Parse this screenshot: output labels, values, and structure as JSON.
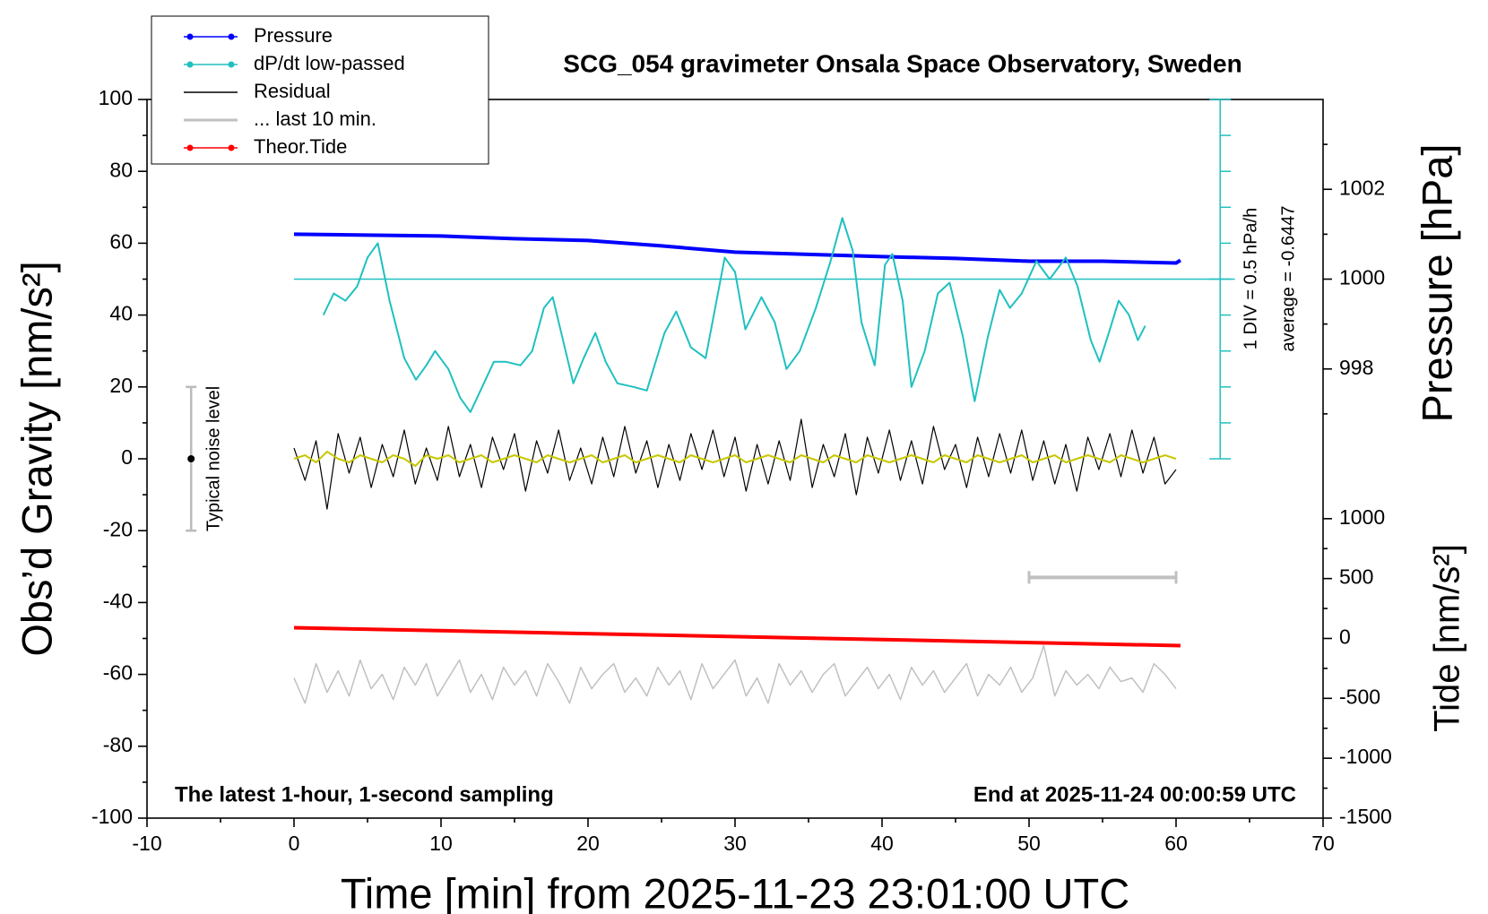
{
  "chart_data": {
    "type": "line",
    "title": "SCG_054 gravimeter Onsala Space Observatory, Sweden",
    "xlabel": "Time [min] from 2025-11-23 23:01:00 UTC",
    "ylabel": "Obs’d Gravity [nm/s²]",
    "y2label": "Pressure [hPa]",
    "y3label": "Tide [nm/s²]",
    "xlim": [
      -10,
      70
    ],
    "xticks": [
      -10,
      0,
      10,
      20,
      30,
      40,
      50,
      60,
      70
    ],
    "xminor": [
      -5,
      5,
      15,
      25,
      35,
      45,
      55,
      65
    ],
    "ylim": [
      -100,
      100
    ],
    "yticks": [
      -100,
      -80,
      -60,
      -40,
      -20,
      0,
      20,
      40,
      60,
      80,
      100
    ],
    "yminor": [
      -90,
      -70,
      -50,
      -30,
      -10,
      10,
      30,
      50,
      70,
      90
    ],
    "y2lim": [
      988,
      1004
    ],
    "y2ticks": [
      998,
      1000,
      1002
    ],
    "y2minor": [
      997,
      999,
      1001,
      1003
    ],
    "y3lim": [
      -1500,
      4500
    ],
    "y3ticks": [
      -1500,
      -1000,
      -500,
      0,
      500,
      1000
    ],
    "y3minor": [
      -1250,
      -750,
      -250,
      250,
      750
    ],
    "annotations": [
      "The latest 1-hour, 1-second sampling",
      "End at 2025-11-24 00:00:59 UTC",
      "1 DIV = 0.5 hPa/h",
      "average = -0.6447"
    ],
    "dpdt_axis": {
      "x": 63,
      "ylim": [
        0,
        100
      ],
      "ticks": [
        0,
        10,
        20,
        30,
        40,
        50,
        60,
        70,
        80,
        90,
        100
      ],
      "ref": 50,
      "ref_x": [
        0,
        64
      ]
    },
    "noise": {
      "x": -7,
      "value": 0,
      "error": 20,
      "label": "Typical noise level"
    },
    "last10_bar": {
      "x": [
        50,
        60
      ],
      "value": -33
    },
    "x": [
      0,
      0.75,
      1.5,
      2.25,
      3,
      3.75,
      4.5,
      5.25,
      6,
      6.75,
      7.5,
      8.25,
      9,
      9.75,
      10.5,
      11.25,
      12,
      12.75,
      13.5,
      14.25,
      15,
      15.75,
      16.5,
      17.25,
      18,
      18.75,
      19.5,
      20.25,
      21,
      21.75,
      22.5,
      23.25,
      24,
      24.75,
      25.5,
      26.25,
      27,
      27.75,
      28.5,
      29.25,
      30,
      30.75,
      31.5,
      32.25,
      33,
      33.75,
      34.5,
      35.25,
      36,
      36.75,
      37.5,
      38.25,
      39,
      39.75,
      40.5,
      41.25,
      42,
      42.75,
      43.5,
      44.25,
      45,
      45.75,
      46.5,
      47.25,
      48,
      48.75,
      49.5,
      50.25,
      51,
      51.75,
      52.5,
      53.25,
      54,
      54.75,
      55.5,
      56.25,
      57,
      57.75,
      58.5,
      59.25,
      60
    ],
    "series": [
      {
        "name": "Pressure",
        "color": "#0000ff",
        "axis": "y2",
        "x": [
          0,
          5,
          10,
          15,
          20,
          25,
          30,
          35,
          40,
          45,
          50,
          55,
          60,
          60.3
        ],
        "values": [
          1001.0,
          1000.98,
          1000.96,
          1000.9,
          1000.86,
          1000.74,
          1000.6,
          1000.55,
          1000.5,
          1000.46,
          1000.4,
          1000.4,
          1000.36,
          1000.42
        ]
      },
      {
        "name": "dP/dt low-passed",
        "color": "#20c0c0",
        "x": [
          2,
          2.7,
          3.5,
          4.3,
          5,
          5.7,
          6.5,
          7.5,
          8.3,
          9,
          9.6,
          10.5,
          11.3,
          12,
          12.8,
          13.6,
          14.4,
          15.4,
          16.2,
          17,
          17.6,
          18.3,
          19,
          19.7,
          20.5,
          21.2,
          22,
          23.1,
          24,
          25.2,
          26,
          27,
          28,
          29.3,
          30,
          30.7,
          31.8,
          32.7,
          33.5,
          34.4,
          35.5,
          36.5,
          37.3,
          38,
          38.6,
          39.5,
          40.2,
          40.7,
          41.4,
          42,
          42.9,
          43.8,
          44.6,
          45.5,
          46.3,
          47.2,
          48,
          48.7,
          49.5,
          50.5,
          51.4,
          52.5,
          53.3,
          54.2,
          54.8,
          55.5,
          56.1,
          56.8,
          57.4,
          57.9
        ],
        "values": [
          40,
          46,
          44,
          48,
          56,
          60,
          44,
          28,
          22,
          26,
          30,
          25,
          17,
          13,
          20,
          27,
          27,
          26,
          30,
          42,
          45,
          33,
          21,
          28,
          35,
          27,
          21,
          20,
          19,
          35,
          41,
          31,
          28,
          56,
          52,
          36,
          45,
          38,
          25,
          30,
          42,
          55,
          67,
          58,
          38,
          26,
          54,
          57,
          44,
          20,
          30,
          46,
          49,
          34,
          16,
          34,
          47,
          42,
          46,
          55,
          50,
          56,
          48,
          33,
          27,
          36,
          44,
          40,
          33,
          37
        ]
      },
      {
        "name": "Residual",
        "color": "#000000",
        "values": [
          3,
          -6,
          5,
          -14,
          7,
          -4,
          6,
          -8,
          4,
          -5,
          8,
          -7,
          3,
          -6,
          9,
          -5,
          4,
          -8,
          6,
          -3,
          7,
          -9,
          5,
          -4,
          8,
          -6,
          3,
          -7,
          6,
          -5,
          9,
          -4,
          5,
          -8,
          4,
          -6,
          7,
          -3,
          8,
          -5,
          6,
          -9,
          4,
          -7,
          5,
          -6,
          11,
          -8,
          4,
          -5,
          7,
          -10,
          6,
          -4,
          8,
          -6,
          5,
          -7,
          9,
          -3,
          4,
          -8,
          6,
          -5,
          7,
          -4,
          8,
          -6,
          5,
          -7,
          4,
          -9,
          6,
          -3,
          7,
          -5,
          8,
          -4,
          6,
          -7,
          -3
        ]
      },
      {
        "name": "... last 10 min.",
        "color": "#c0c0c0",
        "values": [
          -61,
          -68,
          -57,
          -65,
          -59,
          -66,
          -56,
          -64,
          -60,
          -67,
          -58,
          -63,
          -57,
          -66,
          -61,
          -56,
          -65,
          -60,
          -67,
          -58,
          -63,
          -59,
          -66,
          -57,
          -62,
          -68,
          -58,
          -64,
          -60,
          -57,
          -65,
          -61,
          -66,
          -58,
          -63,
          -59,
          -67,
          -57,
          -64,
          -60,
          -56,
          -66,
          -61,
          -68,
          -57,
          -63,
          -59,
          -65,
          -60,
          -57,
          -66,
          -62,
          -58,
          -64,
          -60,
          -67,
          -58,
          -63,
          -59,
          -65,
          -61,
          -57,
          -66,
          -60,
          -63,
          -58,
          -65,
          -61,
          -52,
          -66,
          -59,
          -63,
          -60,
          -64,
          -58,
          -62,
          -61,
          -65,
          -57,
          -60,
          -64
        ]
      },
      {
        "name": "Theor.Tide",
        "color": "#ff0000",
        "axis": "y3",
        "x": [
          0,
          60.3
        ],
        "values": [
          90,
          -60
        ]
      },
      {
        "color": "#c8c800",
        "values": [
          0,
          1,
          -1,
          2,
          0,
          -1,
          1,
          0,
          -1,
          1,
          0,
          -2,
          1,
          0,
          1,
          -1,
          0,
          1,
          -1,
          0,
          1,
          0,
          -1,
          1,
          0,
          -1,
          0,
          1,
          -1,
          0,
          1,
          -1,
          0,
          1,
          0,
          -1,
          1,
          0,
          -1,
          0,
          1,
          -1,
          0,
          1,
          0,
          -1,
          1,
          0,
          -1,
          1,
          0,
          -1,
          1,
          0,
          -1,
          0,
          1,
          0,
          -1,
          1,
          0,
          -1,
          1,
          0,
          -1,
          0,
          1,
          -1,
          0,
          1,
          -1,
          0,
          1,
          0,
          -1,
          1,
          0,
          -1,
          0,
          1,
          0
        ]
      }
    ]
  }
}
